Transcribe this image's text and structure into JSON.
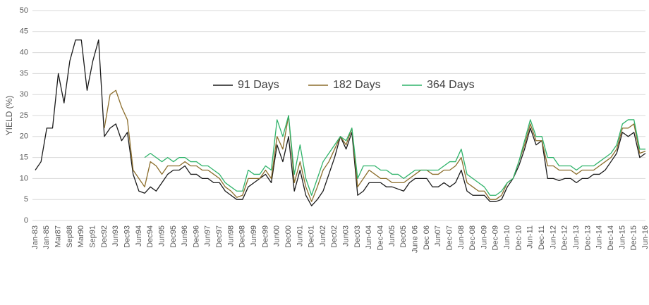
{
  "chart_data": {
    "type": "line",
    "ylabel": "YIELD (%)",
    "ylim": [
      0,
      50
    ],
    "yticks": [
      0,
      5,
      10,
      15,
      20,
      25,
      30,
      35,
      40,
      45,
      50
    ],
    "grid": true,
    "legend": "top",
    "categories": [
      "Jan-83",
      null,
      "Jan-85",
      null,
      "Mar87",
      null,
      "Sep88",
      null,
      "Mar90",
      null,
      "Sep91",
      null,
      "Dec92",
      null,
      "Jun93",
      null,
      "Dec93",
      null,
      "Jun94",
      null,
      "Dec94",
      null,
      "Jun95",
      null,
      "Dec95",
      null,
      "Jun96",
      null,
      "Dec96",
      null,
      "Jun97",
      null,
      "Dec97",
      null,
      "Jun98",
      null,
      "Dec98",
      null,
      "Jun99",
      null,
      "Dec99",
      null,
      "Jun00",
      null,
      "Dec00",
      null,
      "Jun01",
      null,
      "Dec01",
      null,
      "Jun02",
      null,
      "Dec02",
      null,
      "Jun03",
      null,
      "Dec03",
      null,
      "Jun-04",
      null,
      "Dec-04",
      null,
      "Jun05",
      null,
      "Dec05",
      null,
      "June 06",
      null,
      "Dec 06",
      null,
      "Jun07",
      null,
      "Dec-07",
      null,
      "Jun-08",
      null,
      "Dec-08",
      null,
      "Jun-09",
      null,
      "Dec-09",
      null,
      "Jun-10",
      null,
      "Dec-10",
      null,
      "Jun-11",
      null,
      "Dec-11",
      null,
      "Jun-12",
      null,
      "Dec-12",
      null,
      "Jun-13",
      null,
      "Dec-13",
      null,
      "Jun-14",
      null,
      "Dec-14",
      null,
      "Jun-15",
      null,
      "Dec-15",
      null,
      "Jun-16"
    ],
    "series": [
      {
        "name": "91 Days",
        "color": "#1a1a1a",
        "values": [
          12,
          14,
          22,
          22,
          35,
          28,
          38,
          43,
          43,
          31,
          38,
          43,
          20,
          22,
          23,
          19,
          21,
          11,
          7,
          6.5,
          8,
          7,
          9,
          11,
          12,
          12,
          13,
          11,
          11,
          10,
          10,
          9,
          9,
          7,
          6,
          5,
          5,
          8,
          9,
          10,
          11,
          9,
          18,
          14,
          20,
          7,
          12,
          6,
          3.5,
          5,
          7,
          11,
          15,
          20,
          17,
          21,
          6,
          7,
          9,
          9,
          9,
          8,
          8,
          7.5,
          7,
          9,
          10,
          10,
          10,
          8,
          8,
          9,
          8,
          9,
          12,
          7,
          6,
          6,
          6,
          4.5,
          4.5,
          5,
          8,
          10,
          13,
          17,
          22,
          18,
          19,
          10,
          10,
          9.5,
          10,
          10,
          9,
          10,
          10,
          11,
          11,
          12,
          14,
          16,
          21,
          20,
          21,
          15,
          16
        ]
      },
      {
        "name": "182 Days",
        "color": "#8b6d2b",
        "values": [
          null,
          null,
          null,
          null,
          null,
          null,
          null,
          null,
          null,
          null,
          null,
          null,
          22,
          30,
          31,
          27,
          24,
          12,
          10,
          8,
          14,
          13,
          11,
          13,
          13,
          13,
          14,
          13,
          13,
          12,
          12,
          11,
          10,
          8,
          7,
          5.5,
          6,
          10,
          10,
          10,
          12,
          10,
          20,
          17,
          25,
          9,
          14,
          8,
          4.5,
          8,
          12,
          14,
          17,
          20,
          18,
          22,
          8,
          10,
          12,
          11,
          10,
          10,
          9,
          9,
          9,
          10,
          11,
          12,
          12,
          11,
          11,
          12,
          12,
          13,
          15,
          9,
          8,
          7,
          7,
          5,
          5,
          6,
          9,
          10,
          14,
          18,
          23,
          19,
          19,
          13,
          13,
          12,
          12,
          12,
          11,
          12,
          12,
          12,
          13,
          14,
          15,
          17,
          22,
          22,
          23,
          16,
          16.5
        ]
      },
      {
        "name": "364 Days",
        "color": "#2fb36a",
        "values": [
          null,
          null,
          null,
          null,
          null,
          null,
          null,
          null,
          null,
          null,
          null,
          null,
          null,
          null,
          null,
          null,
          null,
          null,
          null,
          15,
          16,
          15,
          14,
          15,
          14,
          15,
          15,
          14,
          14,
          13,
          13,
          12,
          11,
          9,
          8,
          7,
          7,
          12,
          11,
          11,
          13,
          12,
          24,
          20,
          25,
          11,
          18,
          10,
          6,
          10,
          14,
          16,
          18,
          20,
          19,
          22,
          10,
          13,
          13,
          13,
          12,
          12,
          11,
          11,
          10,
          11,
          12,
          12,
          12,
          12,
          12,
          13,
          14,
          14,
          17,
          11,
          10,
          9,
          8,
          6,
          6,
          7,
          9,
          10,
          14,
          19,
          24,
          20,
          20,
          15,
          15,
          13,
          13,
          13,
          12,
          13,
          13,
          13,
          14,
          15,
          16,
          18,
          23,
          24,
          24,
          17,
          17
        ]
      }
    ]
  }
}
